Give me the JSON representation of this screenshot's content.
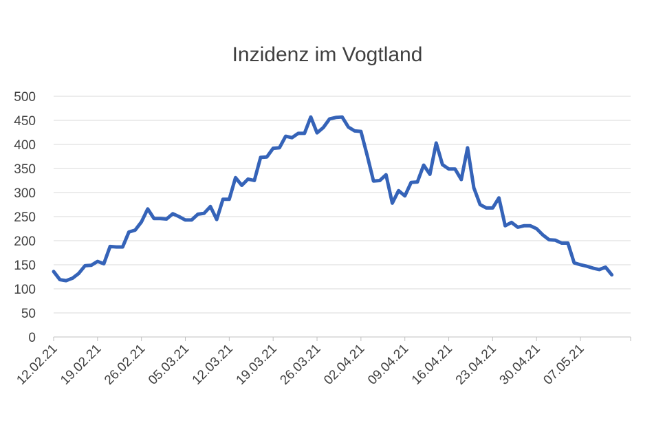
{
  "chart_data": {
    "type": "line",
    "title": "Inzidenz im Vogtland",
    "xlabel": "",
    "ylabel": "",
    "ylim": [
      0,
      500
    ],
    "yticks": [
      0,
      50,
      100,
      150,
      200,
      250,
      300,
      350,
      400,
      450,
      500
    ],
    "grid": true,
    "legend": "none",
    "line_color": "#3563b8",
    "x_tick_labels": [
      "12.02.21",
      "19.02.21",
      "26.02.21",
      "05.03.21",
      "12.03.21",
      "19.03.21",
      "26.03.21",
      "02.04.21",
      "09.04.21",
      "16.04.21",
      "23.04.21",
      "30.04.21",
      "07.05.21"
    ],
    "x_start": "12.02.21",
    "x_end": "15.05.21",
    "series": [
      {
        "values": [
          136,
          119,
          117,
          122,
          132,
          148,
          149,
          157,
          152,
          188,
          187,
          187,
          218,
          222,
          239,
          266,
          246,
          246,
          245,
          256,
          250,
          243,
          243,
          255,
          257,
          271,
          244,
          286,
          286,
          331,
          315,
          328,
          325,
          373,
          374,
          392,
          393,
          417,
          414,
          423,
          423,
          457,
          424,
          435,
          453,
          456,
          457,
          436,
          428,
          427,
          377,
          324,
          325,
          337,
          278,
          304,
          293,
          321,
          322,
          357,
          338,
          403,
          358,
          349,
          349,
          327,
          393,
          310,
          275,
          268,
          268,
          289,
          231,
          238,
          228,
          231,
          231,
          225,
          212,
          202,
          201,
          195,
          195,
          154,
          150,
          147,
          143,
          140,
          145,
          129
        ]
      }
    ]
  }
}
